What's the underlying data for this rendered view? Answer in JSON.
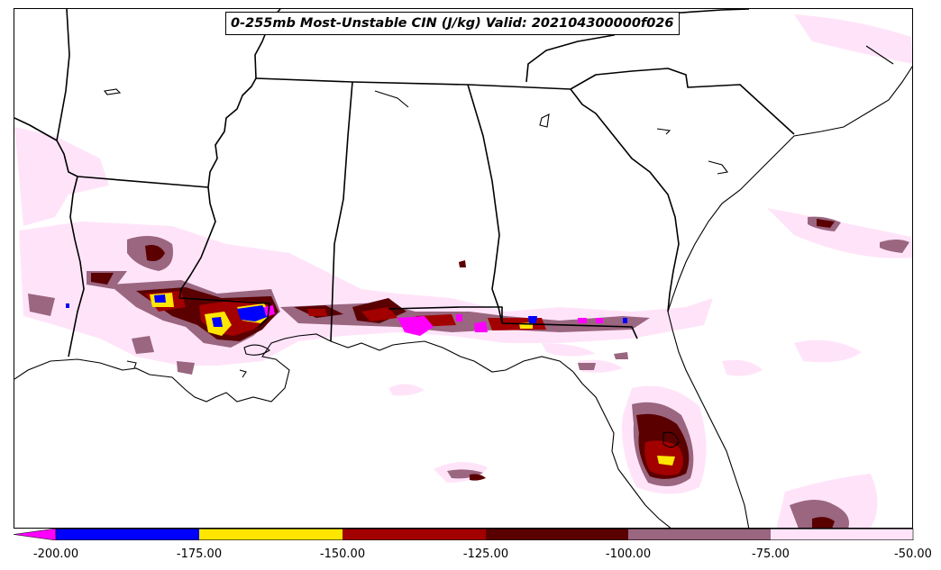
{
  "map": {
    "title": "0-255mb Most-Unstable CIN (J/kg) Valid: 202104300000f026",
    "region": "Southeastern United States / Gulf Coast",
    "variable": "Most-Unstable CIN",
    "units": "J/kg"
  },
  "colorbar": {
    "extend": "min",
    "levels": [
      {
        "min": -200,
        "max": -175,
        "color": "#0000ff"
      },
      {
        "min": -175,
        "max": -150,
        "color": "#ffe600"
      },
      {
        "min": -150,
        "max": -125,
        "color": "#a30000"
      },
      {
        "min": -125,
        "max": -100,
        "color": "#5a0000"
      },
      {
        "min": -100,
        "max": -75,
        "color": "#9a6680"
      },
      {
        "min": -75,
        "max": -50,
        "color": "#ffe4f9"
      }
    ],
    "below_color": "#ff00ff",
    "tick_labels": [
      "-200.00",
      "-175.00",
      "-150.00",
      "-125.00",
      "-100.00",
      "-75.00",
      "-50.00"
    ]
  }
}
